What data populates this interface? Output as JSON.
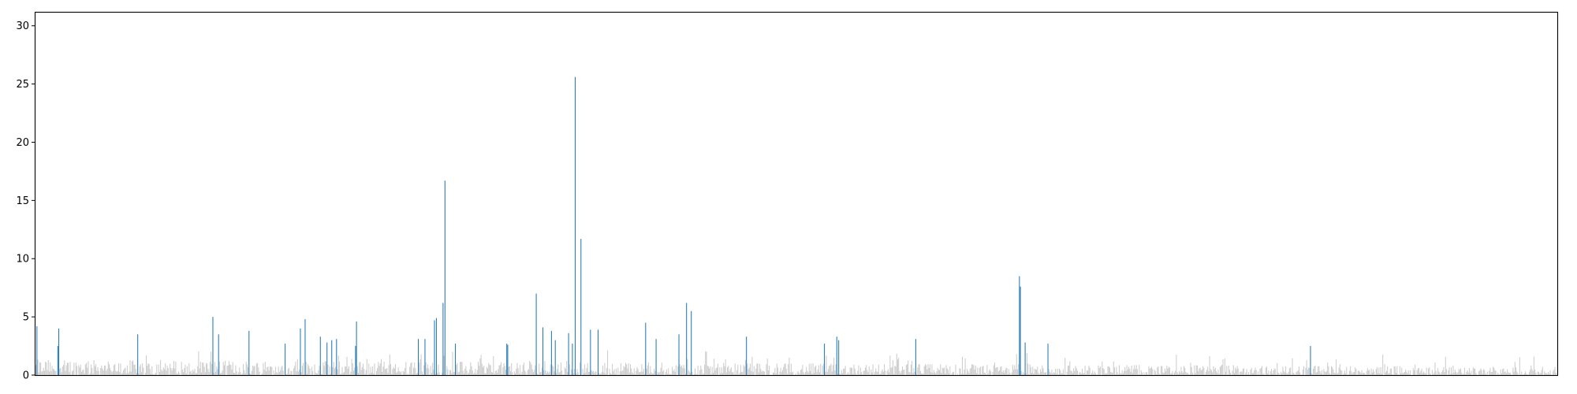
{
  "chart_data": {
    "type": "bar",
    "title": "",
    "xlabel": "",
    "ylabel": "",
    "ylim": [
      0,
      31.2
    ],
    "y_ticks": [
      0,
      5,
      10,
      15,
      20,
      25,
      30
    ],
    "y_tick_labels": [
      "0",
      "5",
      "10",
      "15",
      "20",
      "25",
      "30"
    ],
    "x_ticks_shown": false,
    "grid": false,
    "legend": "none",
    "bar_count": 1600,
    "series": [
      {
        "color": "#cccccc",
        "description": "background bars (below threshold)"
      },
      {
        "color": "#1f77b4",
        "description": "highlighted bars"
      }
    ],
    "highlighted": [
      {
        "i": 1,
        "v": 4.2
      },
      {
        "i": 23,
        "v": 2.5
      },
      {
        "i": 24,
        "v": 4.0
      },
      {
        "i": 107,
        "v": 3.5
      },
      {
        "i": 186,
        "v": 5.0
      },
      {
        "i": 192,
        "v": 3.5
      },
      {
        "i": 224,
        "v": 3.8
      },
      {
        "i": 262,
        "v": 2.7
      },
      {
        "i": 278,
        "v": 4.0
      },
      {
        "i": 283,
        "v": 4.8
      },
      {
        "i": 299,
        "v": 3.3
      },
      {
        "i": 306,
        "v": 2.8
      },
      {
        "i": 311,
        "v": 3.0
      },
      {
        "i": 316,
        "v": 3.1
      },
      {
        "i": 336,
        "v": 2.5
      },
      {
        "i": 337,
        "v": 4.6
      },
      {
        "i": 402,
        "v": 3.1
      },
      {
        "i": 409,
        "v": 3.1
      },
      {
        "i": 419,
        "v": 4.7
      },
      {
        "i": 421,
        "v": 4.9
      },
      {
        "i": 428,
        "v": 6.2
      },
      {
        "i": 430,
        "v": 16.7
      },
      {
        "i": 441,
        "v": 2.7
      },
      {
        "i": 495,
        "v": 2.7
      },
      {
        "i": 496,
        "v": 2.6
      },
      {
        "i": 526,
        "v": 7.0
      },
      {
        "i": 533,
        "v": 4.1
      },
      {
        "i": 542,
        "v": 3.8
      },
      {
        "i": 546,
        "v": 3.0
      },
      {
        "i": 560,
        "v": 3.6
      },
      {
        "i": 564,
        "v": 2.7
      },
      {
        "i": 567,
        "v": 25.6
      },
      {
        "i": 573,
        "v": 11.7
      },
      {
        "i": 583,
        "v": 3.9
      },
      {
        "i": 591,
        "v": 3.9
      },
      {
        "i": 641,
        "v": 4.5
      },
      {
        "i": 652,
        "v": 3.1
      },
      {
        "i": 676,
        "v": 3.5
      },
      {
        "i": 684,
        "v": 6.2
      },
      {
        "i": 689,
        "v": 5.5
      },
      {
        "i": 747,
        "v": 3.3
      },
      {
        "i": 829,
        "v": 2.7
      },
      {
        "i": 842,
        "v": 3.3
      },
      {
        "i": 844,
        "v": 3.0
      },
      {
        "i": 925,
        "v": 3.1
      },
      {
        "i": 1034,
        "v": 8.5
      },
      {
        "i": 1035,
        "v": 7.6
      },
      {
        "i": 1040,
        "v": 2.8
      },
      {
        "i": 1064,
        "v": 2.7
      },
      {
        "i": 1340,
        "v": 2.5
      }
    ]
  }
}
